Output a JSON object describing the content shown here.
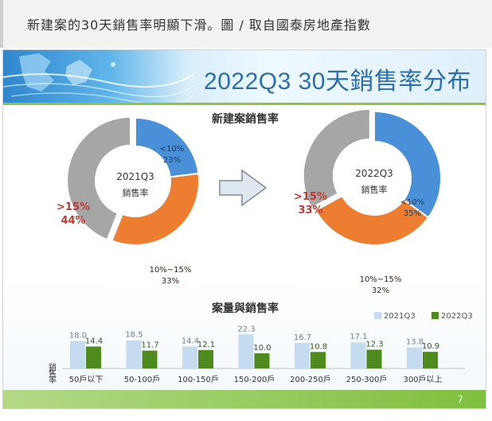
{
  "caption": "新建案的30天銷售率明顯下滑。圖 / 取自國泰房地產指數",
  "slide": {
    "title": "2022Q3 30天銷售率分布",
    "page_number": "7"
  },
  "colors": {
    "blue": "#4a90d9",
    "orange": "#ed7d31",
    "gray": "#a6a6a6",
    "light_blue": "#c5dcf0",
    "green": "#4e8a1e",
    "red_label": "#c0392b",
    "dark_text": "#333333"
  },
  "chart_data": [
    {
      "type": "pie",
      "title": "新建案銷售率",
      "center_label": [
        "2021Q3",
        "銷售率"
      ],
      "slices": [
        {
          "label": "<10%",
          "value": 23,
          "value_text": "23%",
          "color": "#4a90d9"
        },
        {
          "label": "10%~15%",
          "value": 33,
          "value_text": "33%",
          "color": "#ed7d31"
        },
        {
          "label": ">15%",
          "value": 44,
          "value_text": "44%",
          "color": "#a6a6a6"
        }
      ]
    },
    {
      "type": "pie",
      "title": "",
      "center_label": [
        "2022Q3",
        "銷售率"
      ],
      "slices": [
        {
          "label": "<10%",
          "value": 35,
          "value_text": "35%",
          "color": "#4a90d9"
        },
        {
          "label": "10%~15%",
          "value": 32,
          "value_text": "32%",
          "color": "#ed7d31"
        },
        {
          "label": ">15%",
          "value": 33,
          "value_text": "33%",
          "color": "#a6a6a6"
        }
      ]
    },
    {
      "type": "bar",
      "title": "案量與銷售率",
      "ylabel": "銷售率",
      "categories": [
        "50戶以下",
        "50-100戶",
        "100-150戶",
        "150-200戶",
        "200-250戶",
        "250-300戶",
        "300戶以上"
      ],
      "series": [
        {
          "name": "2021Q3",
          "color": "#c5dcf0",
          "values": [
            18.0,
            18.5,
            14.4,
            22.3,
            16.7,
            17.1,
            13.8
          ],
          "labels": [
            "18.0",
            "18.5",
            "14.4",
            "22.3",
            "16.7",
            "17.1",
            "13.8"
          ]
        },
        {
          "name": "2022Q3",
          "color": "#4e8a1e",
          "values": [
            14.4,
            11.7,
            12.1,
            10.0,
            10.8,
            12.3,
            10.9
          ],
          "labels": [
            "14.4",
            "11.7",
            "12.1",
            "10.0",
            "10.8",
            "12.3",
            "10.9"
          ]
        }
      ],
      "ylim": [
        0,
        24
      ],
      "legend": "top-right",
      "grid": false
    }
  ]
}
